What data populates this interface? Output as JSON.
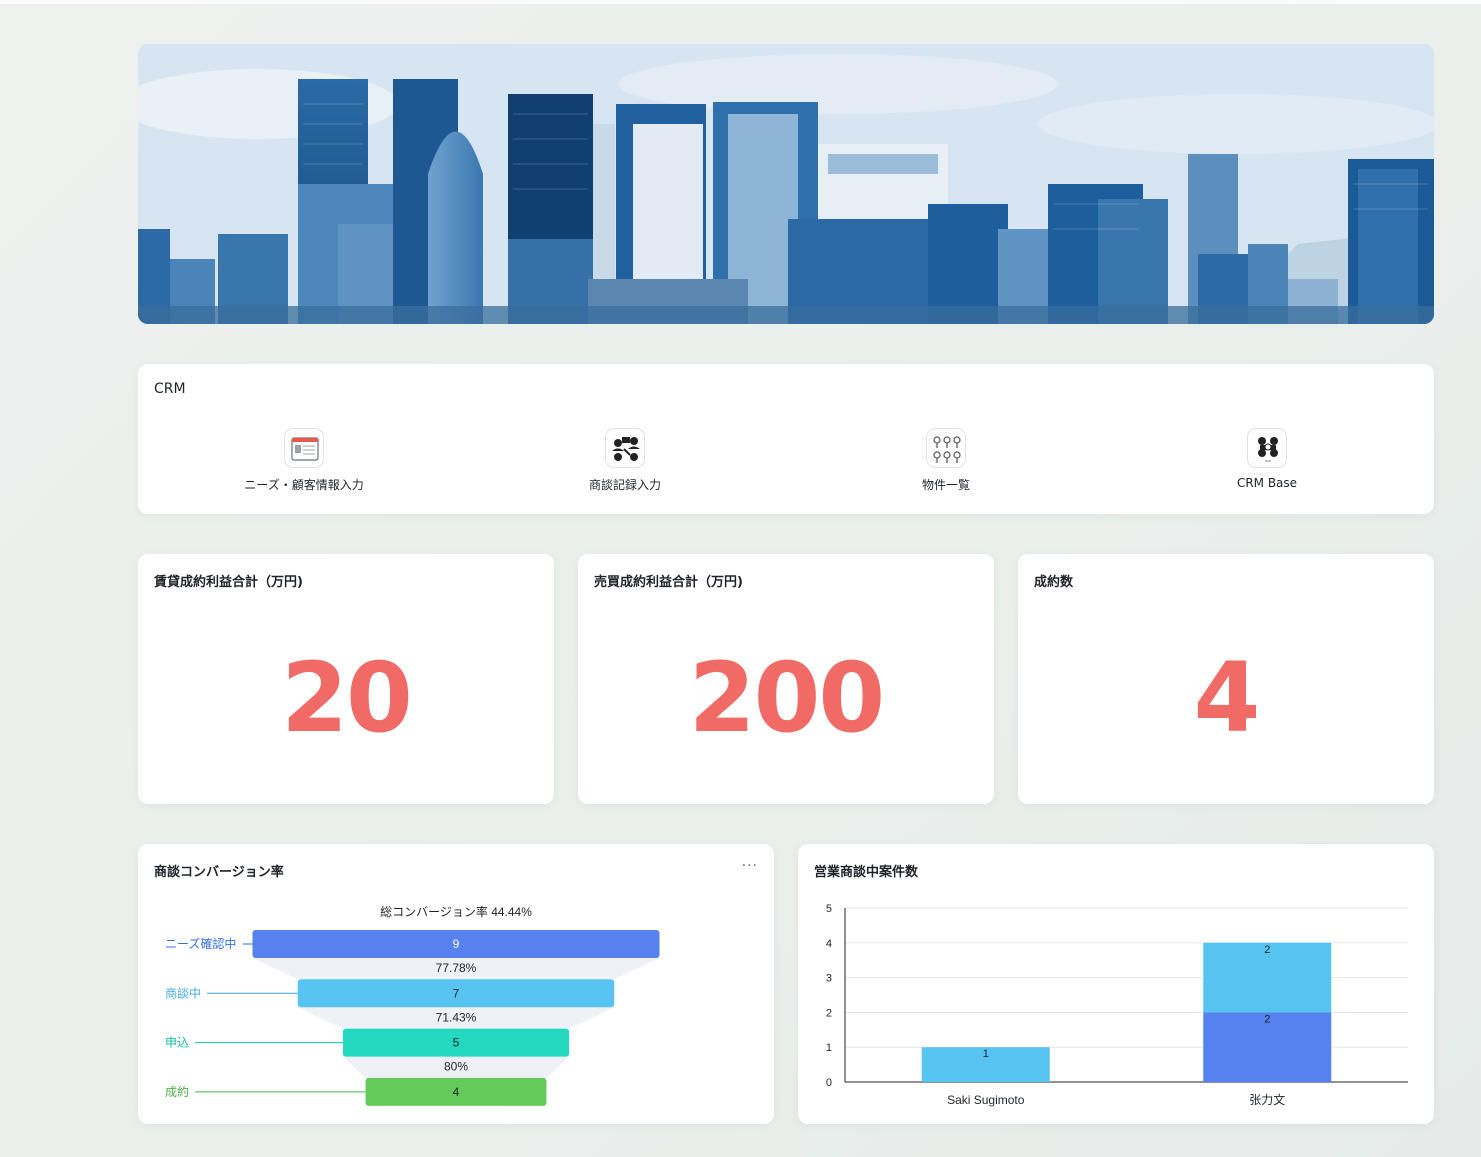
{
  "crm": {
    "title": "CRM",
    "apps": [
      {
        "label": "ニーズ・顧客情報入力",
        "icon": "form-icon"
      },
      {
        "label": "商談記録入力",
        "icon": "meeting-icon"
      },
      {
        "label": "物件一覧",
        "icon": "property-list-icon"
      },
      {
        "label": "CRM Base",
        "icon": "crm-base-icon"
      }
    ]
  },
  "kpis": [
    {
      "title": "賃貸成約利益合計（万円)",
      "value": "20"
    },
    {
      "title": "売買成約利益合計（万円)",
      "value": "200"
    },
    {
      "title": "成約数",
      "value": "4"
    }
  ],
  "funnel": {
    "title": "商談コンバージョン率",
    "more": "···",
    "summary": "総コンバージョン率 44.44%",
    "chart_data": {
      "type": "funnel",
      "stages": [
        {
          "name": "ニーズ確認中",
          "value": 9,
          "color": "#5582ee"
        },
        {
          "name": "商談中",
          "value": 7,
          "color": "#56c3f0"
        },
        {
          "name": "申込",
          "value": 5,
          "color": "#25d8c0"
        },
        {
          "name": "成約",
          "value": 4,
          "color": "#64cb5a"
        }
      ],
      "conversion_rates": [
        "77.78%",
        "71.43%",
        "80%"
      ],
      "label_colors": [
        "#3370e6",
        "#3fa9e6",
        "#14bfa6",
        "#4cb047"
      ]
    }
  },
  "bar": {
    "title": "営業商談中案件数",
    "chart_data": {
      "type": "bar",
      "stacked": true,
      "categories": [
        "Saki Sugimoto",
        "张力文"
      ],
      "series": [
        {
          "values": [
            0,
            2
          ],
          "color": "#5582ee"
        },
        {
          "values": [
            1,
            2
          ],
          "color": "#56c3f0"
        }
      ],
      "ylim": [
        0,
        5
      ],
      "yticks": [
        0,
        1,
        2,
        3,
        4,
        5
      ],
      "grid": true
    }
  }
}
